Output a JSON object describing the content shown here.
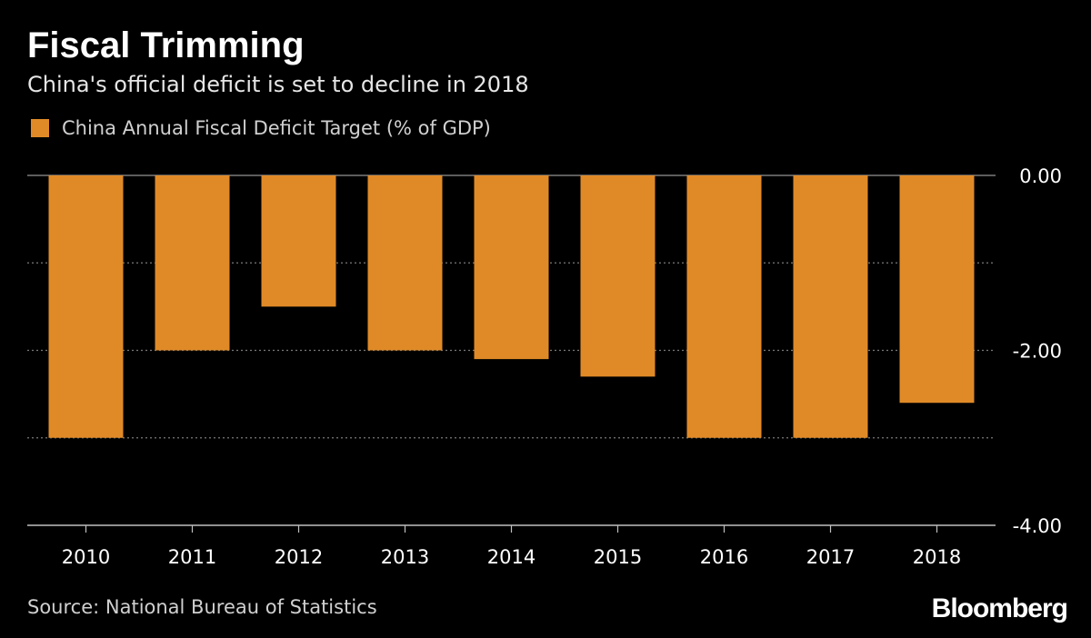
{
  "title": "Fiscal Trimming",
  "subtitle": "China's official deficit is set to decline in 2018",
  "legend": {
    "label": "China Annual Fiscal Deficit Target (% of GDP)"
  },
  "source": "Source: National Bureau of Statistics",
  "brand": "Bloomberg",
  "colors": {
    "bar": "#E08A27",
    "background": "#000000",
    "grid": "#7a7a7a",
    "axis": "#bfbfbf",
    "text": "#ffffff"
  },
  "chart_data": {
    "type": "bar",
    "title": "Fiscal Trimming",
    "subtitle": "China's official deficit is set to decline in 2018",
    "categories": [
      "2010",
      "2011",
      "2012",
      "2013",
      "2014",
      "2015",
      "2016",
      "2017",
      "2018"
    ],
    "series": [
      {
        "name": "China Annual Fiscal Deficit Target (% of GDP)",
        "values": [
          -3.0,
          -2.0,
          -1.5,
          -2.0,
          -2.1,
          -2.3,
          -3.0,
          -3.0,
          -2.6
        ]
      }
    ],
    "ylim": [
      -4,
      0
    ],
    "yticks": [
      0,
      -1,
      -2,
      -3,
      -4
    ],
    "ytick_labels": [
      "0.00",
      "",
      "-2.00",
      "",
      "-4.00"
    ],
    "y_axis_position": "right",
    "grid": true,
    "legend_position": "top-left",
    "xlabel": "",
    "ylabel": ""
  }
}
